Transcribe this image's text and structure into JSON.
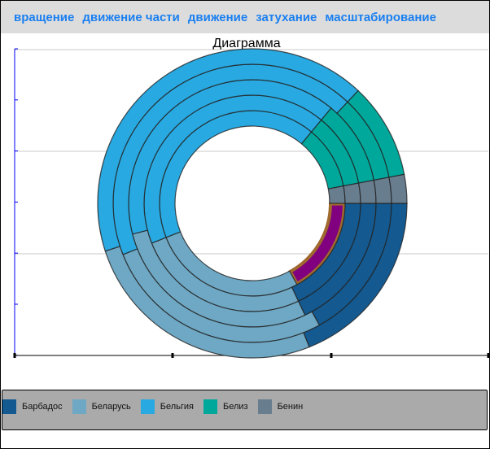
{
  "toolbar": {
    "items": [
      "вращение",
      "движение части",
      "движение",
      "затухание",
      "масштабирование"
    ]
  },
  "chart_data": {
    "type": "doughnut",
    "title": "Диаграмма",
    "categories": [
      "Барбадос",
      "Беларусь",
      "Бельгия",
      "Белиз",
      "Бенин"
    ],
    "colors": [
      "#14598f",
      "#6fa8c4",
      "#29a9e1",
      "#00a89c",
      "#687d8e"
    ],
    "highlight": {
      "ring": 0,
      "category": "Барбадос",
      "fill": "#800080",
      "stroke": "#a0692e"
    },
    "series": [
      {
        "values": [
          17,
          27,
          42,
          11,
          3
        ]
      },
      {
        "values": [
          18,
          26,
          42,
          11,
          3
        ]
      },
      {
        "values": [
          18,
          28,
          40,
          11,
          3
        ]
      },
      {
        "values": [
          17,
          27,
          43,
          10,
          3
        ]
      },
      {
        "values": [
          19,
          26,
          42,
          10,
          3
        ]
      }
    ],
    "legend": "bottom",
    "grid": true
  }
}
